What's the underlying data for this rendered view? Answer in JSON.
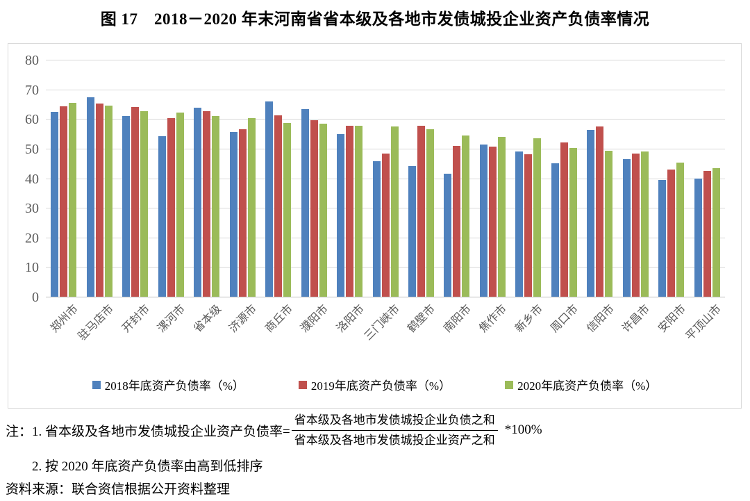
{
  "title": "图 17　2018－2020 年末河南省省本级及各地市发债城投企业资产负债率情况",
  "notes": {
    "note1_prefix": "注：1. 省本级及各地市发债城投企业资产负债率=",
    "fraction_numerator": "省本级及各地市发债城投企业负债之和",
    "fraction_denominator": "省本级及各地市发债城投企业资产之和",
    "note1_suffix": "*100%",
    "note2": "2. 按 2020 年底资产负债率由高到低排序",
    "source": "资料来源：联合资信根据公开资料整理"
  },
  "style_colors": {
    "gridline": "#d9d9d9",
    "axis_line": "#bfbfbf",
    "tick_text": "#595959",
    "chart_border": "#d9d9d9"
  },
  "chart_data": {
    "type": "bar",
    "title": "图 17　2018－2020 年末河南省省本级及各地市发债城投企业资产负债率情况",
    "categories": [
      "郑州市",
      "驻马店市",
      "开封市",
      "漯河市",
      "省本级",
      "济源市",
      "商丘市",
      "濮阳市",
      "洛阳市",
      "三门峡市",
      "鹤壁市",
      "南阳市",
      "焦作市",
      "新乡市",
      "周口市",
      "信阳市",
      "许昌市",
      "安阳市",
      "平顶山市"
    ],
    "series": [
      {
        "name": "2018年底资产负债率（%）",
        "color": "#4F81BD",
        "values": [
          62.3,
          67.4,
          61.1,
          54.1,
          63.8,
          55.7,
          65.9,
          63.3,
          55.0,
          45.8,
          44.0,
          41.5,
          51.3,
          49.0,
          45.0,
          56.2,
          46.4,
          39.5,
          39.9
        ]
      },
      {
        "name": "2019年底资产负债率（%）",
        "color": "#C0504D",
        "values": [
          64.2,
          65.2,
          64.0,
          60.4,
          62.6,
          56.5,
          61.3,
          59.6,
          57.7,
          48.3,
          57.6,
          51.0,
          50.7,
          48.2,
          52.2,
          57.5,
          48.3,
          42.9,
          42.4
        ]
      },
      {
        "name": "2020年底资产负债率（%）",
        "color": "#9BBB59",
        "values": [
          65.5,
          64.6,
          62.7,
          62.1,
          61.1,
          60.2,
          58.6,
          58.4,
          57.6,
          57.4,
          56.5,
          54.5,
          53.9,
          53.4,
          50.3,
          49.2,
          49.0,
          45.2,
          43.3
        ]
      }
    ],
    "xlabel": "",
    "ylabel": "",
    "ylim": [
      0,
      80
    ],
    "ytick_interval": 10,
    "grid": true,
    "legend_position": "bottom",
    "bar_orientation": "vertical"
  }
}
